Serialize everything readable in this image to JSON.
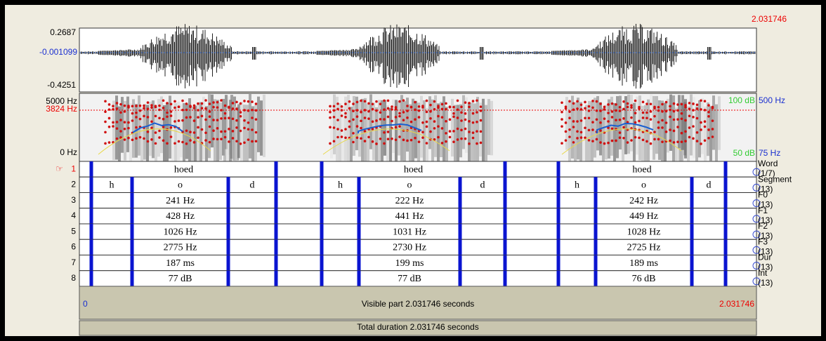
{
  "editor": {
    "top_time": "2.031746",
    "waveform": {
      "max": "0.2687",
      "cursor": "-0.001099",
      "min": "-0.4251"
    },
    "spectrogram": {
      "top": "5000 Hz",
      "cursor": "3824 Hz",
      "bottom": "0 Hz",
      "intensity_top": "100 dB",
      "pitch_top": "500 Hz",
      "intensity_bottom": "50 dB",
      "pitch_bottom": "75 Hz"
    },
    "pointer": "☞",
    "tiers": [
      {
        "number": "1",
        "name": "Word",
        "count": "(1/7)",
        "labels": [
          "hoed",
          "hoed",
          "hoed"
        ]
      },
      {
        "number": "2",
        "name": "Segment",
        "count": "(13)",
        "labels": [
          "h",
          "o",
          "d",
          "h",
          "o",
          "d",
          "h",
          "o",
          "d"
        ]
      },
      {
        "number": "3",
        "name": "F0",
        "count": "(13)",
        "labels": [
          "241 Hz",
          "222 Hz",
          "242 Hz"
        ]
      },
      {
        "number": "4",
        "name": "F1",
        "count": "(13)",
        "labels": [
          "428 Hz",
          "441 Hz",
          "449 Hz"
        ]
      },
      {
        "number": "5",
        "name": "F2",
        "count": "(13)",
        "labels": [
          "1026 Hz",
          "1031 Hz",
          "1028 Hz"
        ]
      },
      {
        "number": "6",
        "name": "F3",
        "count": "(13)",
        "labels": [
          "2775 Hz",
          "2730 Hz",
          "2725 Hz"
        ]
      },
      {
        "number": "7",
        "name": "Dur",
        "count": "(13)",
        "labels": [
          "187 ms",
          "199 ms",
          "189 ms"
        ]
      },
      {
        "number": "8",
        "name": "Int",
        "count": "(13)",
        "labels": [
          "77 dB",
          "77 dB",
          "76 dB"
        ]
      }
    ],
    "visible_start": "0",
    "visible_text": "Visible part 2.031746 seconds",
    "visible_end": "2.031746",
    "total_text": "Total duration 2.031746 seconds"
  }
}
